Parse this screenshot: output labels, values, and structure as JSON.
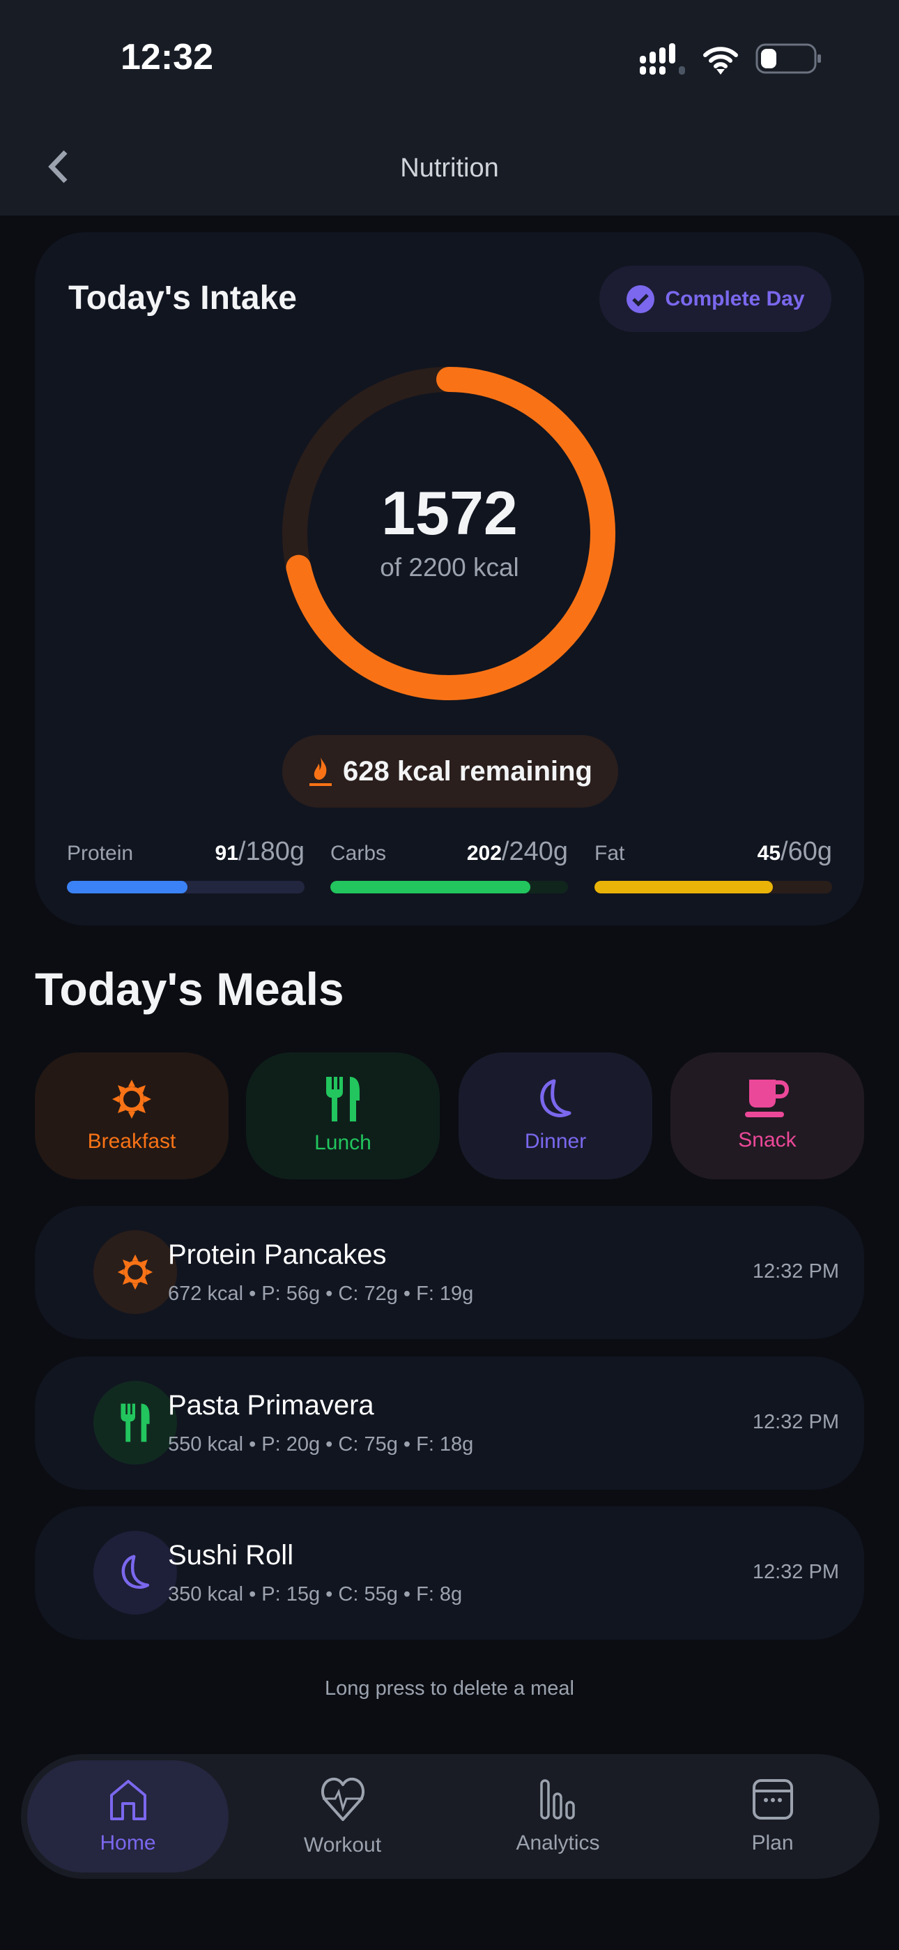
{
  "status_bar": {
    "time": "12:32"
  },
  "header": {
    "title": "Nutrition"
  },
  "intake": {
    "title": "Today's Intake",
    "complete_label": "Complete Day",
    "consumed": "1572",
    "of_label": "of 2200 kcal",
    "goal": 2200,
    "progress": 0.7145,
    "remaining_label": "628 kcal remaining",
    "ring_color": "#f97316",
    "track_color": "#2a1e1a"
  },
  "macros": [
    {
      "label": "Protein",
      "current": "91",
      "target": "/180g",
      "fraction": 0.506,
      "color": "#3b82f6",
      "track": "#23263f"
    },
    {
      "label": "Carbs",
      "current": "202",
      "target": "/240g",
      "fraction": 0.842,
      "color": "#22c55e",
      "track": "#10261d"
    },
    {
      "label": "Fat",
      "current": "45",
      "target": "/60g",
      "fraction": 0.75,
      "color": "#eab308",
      "track": "#2a1e1a"
    }
  ],
  "meals_title": "Today's Meals",
  "categories": [
    {
      "label": "Breakfast",
      "icon": "sun-icon",
      "color": "#f97316",
      "bg": "#231814"
    },
    {
      "label": "Lunch",
      "icon": "utensils-icon",
      "color": "#22c55e",
      "bg": "#0e1f1a"
    },
    {
      "label": "Dinner",
      "icon": "moon-icon",
      "color": "#7b68ee",
      "bg": "#191b2c"
    },
    {
      "label": "Snack",
      "icon": "mug-icon",
      "color": "#ec4899",
      "bg": "#211a22"
    }
  ],
  "meals": [
    {
      "name": "Protein Pancakes",
      "details": "672 kcal • P: 56g • C: 72g • F: 19g",
      "time": "12:32 PM",
      "icon": "sun-icon"
    },
    {
      "name": "Pasta Primavera",
      "details": "550 kcal • P: 20g • C: 75g • F: 18g",
      "time": "12:32 PM",
      "icon": "utensils-icon"
    },
    {
      "name": "Sushi Roll",
      "details": "350 kcal • P: 15g • C: 55g • F: 8g",
      "time": "12:32 PM",
      "icon": "moon-icon"
    }
  ],
  "hint": "Long press to delete a meal",
  "nav": [
    {
      "label": "Home",
      "active": true
    },
    {
      "label": "Workout"
    },
    {
      "label": "Analytics"
    },
    {
      "label": "Plan"
    }
  ]
}
